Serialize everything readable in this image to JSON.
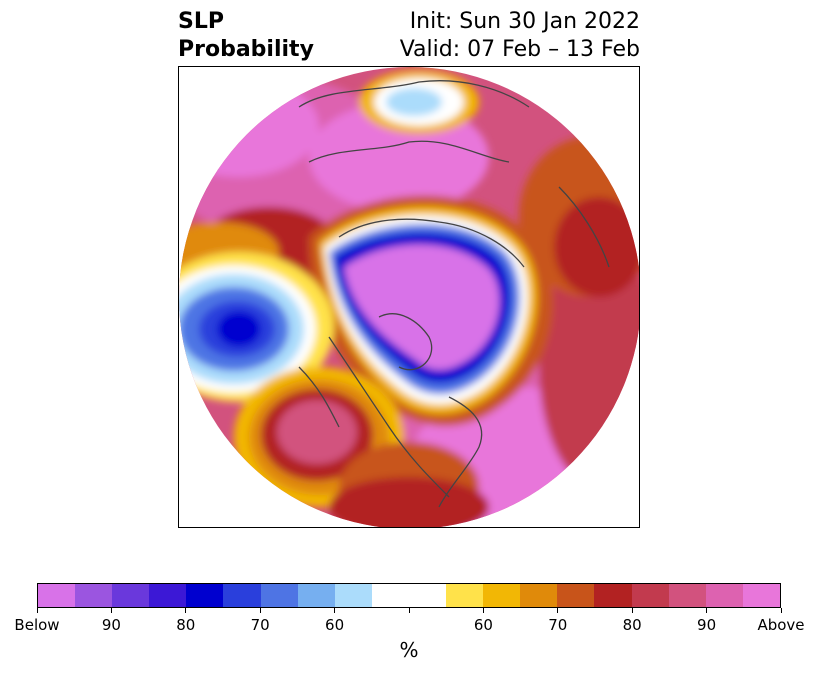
{
  "title": {
    "left_line1": "SLP",
    "left_line2": "Probability",
    "right_line1": "Init: Sun 30 Jan 2022",
    "right_line2": "Valid: 07 Feb – 13 Feb"
  },
  "colorbar": {
    "colors": [
      "#d872e8",
      "#9b55e0",
      "#6a38dc",
      "#3c18d6",
      "#0000cf",
      "#2a3fdc",
      "#4e74e4",
      "#76aff0",
      "#abdcfb",
      "#ffffff",
      "#ffe24a",
      "#f2b705",
      "#e08a0a",
      "#c8541a",
      "#b22222",
      "#c23a4e",
      "#d2527e",
      "#dd62b0",
      "#e876da"
    ],
    "labels": [
      "Below",
      "90",
      "80",
      "70",
      "60",
      "60",
      "70",
      "80",
      "90",
      "Above"
    ],
    "unit": "%"
  },
  "map": {
    "projection": "north-polar-stereographic",
    "features": [
      "below-normal-slp-arctic",
      "below-normal-slp-north-pacific",
      "above-normal-slp-north-atlantic",
      "above-normal-slp-eurasia",
      "above-normal-slp-northeast-pacific"
    ]
  }
}
